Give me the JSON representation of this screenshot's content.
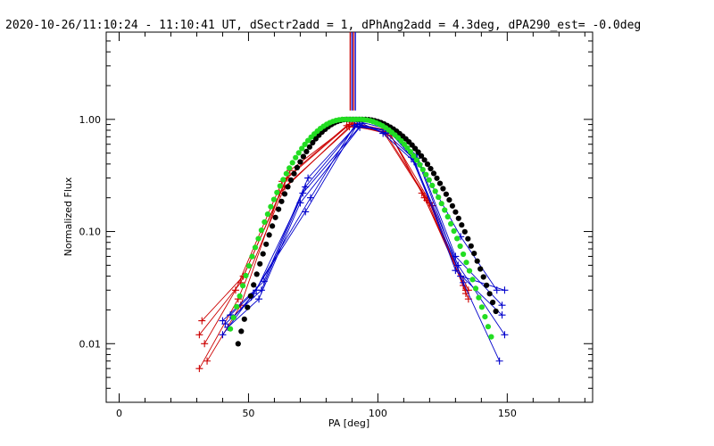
{
  "chart_data": {
    "type": "line",
    "title": "2020-10-26/11:10:24 - 11:10:41 UT, dSectr2add = 1, dPhAng2add = 4.3deg, dPA290_est= -0.0deg",
    "xlabel": "PA [deg]",
    "ylabel": "Normalized Flux",
    "xlim": [
      -5,
      183
    ],
    "ylim": [
      0.003,
      6.0
    ],
    "yscale": "log",
    "xticks": [
      0,
      50,
      100,
      150
    ],
    "xtick_labels": [
      "0",
      "50",
      "100",
      "150"
    ],
    "yticks": [
      0.01,
      0.1,
      1.0
    ],
    "ytick_labels": [
      "0.01",
      "0.10",
      "1.00"
    ],
    "vlines": [
      {
        "x": 89.3,
        "color": "#cc0000"
      },
      {
        "x": 90.0,
        "color": "#0000cc"
      },
      {
        "x": 90.6,
        "color": "#cc0000"
      },
      {
        "x": 91.3,
        "color": "#0000cc"
      }
    ],
    "series": [
      {
        "name": "red-1",
        "color": "#cc0000",
        "marker": "plus",
        "x": [
          31,
          47,
          66,
          90,
          104,
          118,
          134
        ],
        "y": [
          0.012,
          0.035,
          0.35,
          0.93,
          0.8,
          0.2,
          0.03
        ]
      },
      {
        "name": "red-2",
        "color": "#cc0000",
        "marker": "plus",
        "x": [
          32,
          48,
          65,
          89,
          103,
          120,
          135
        ],
        "y": [
          0.016,
          0.04,
          0.3,
          0.9,
          0.75,
          0.18,
          0.025
        ]
      },
      {
        "name": "red-3",
        "color": "#cc0000",
        "marker": "plus",
        "x": [
          33,
          45,
          63,
          88,
          102,
          119,
          133
        ],
        "y": [
          0.01,
          0.03,
          0.28,
          0.88,
          0.78,
          0.19,
          0.033
        ]
      },
      {
        "name": "red-4",
        "color": "#cc0000",
        "marker": "plus",
        "x": [
          31,
          46,
          64,
          91,
          105,
          121,
          134
        ],
        "y": [
          0.006,
          0.025,
          0.25,
          0.92,
          0.72,
          0.17,
          0.028
        ]
      },
      {
        "name": "red-5",
        "color": "#cc0000",
        "marker": "plus",
        "x": [
          34,
          47,
          62,
          89,
          104,
          117,
          135
        ],
        "y": [
          0.007,
          0.022,
          0.22,
          0.86,
          0.8,
          0.22,
          0.03
        ]
      },
      {
        "name": "blue-1",
        "color": "#0000cc",
        "marker": "plus",
        "x": [
          40,
          56,
          73,
          93,
          104,
          115,
          132,
          146
        ],
        "y": [
          0.016,
          0.036,
          0.3,
          0.95,
          0.82,
          0.45,
          0.09,
          0.03
        ]
      },
      {
        "name": "blue-2",
        "color": "#0000cc",
        "marker": "plus",
        "x": [
          41,
          55,
          72,
          92,
          103,
          115,
          130,
          148
        ],
        "y": [
          0.015,
          0.03,
          0.25,
          0.9,
          0.8,
          0.48,
          0.06,
          0.022
        ]
      },
      {
        "name": "blue-3",
        "color": "#0000cc",
        "marker": "plus",
        "x": [
          43,
          53,
          71,
          94,
          102,
          114,
          131,
          149
        ],
        "y": [
          0.018,
          0.03,
          0.22,
          0.92,
          0.75,
          0.42,
          0.05,
          0.012
        ]
      },
      {
        "name": "blue-4",
        "color": "#0000cc",
        "marker": "plus",
        "x": [
          40,
          52,
          74,
          91,
          105,
          113,
          133,
          147
        ],
        "y": [
          0.012,
          0.028,
          0.2,
          0.88,
          0.78,
          0.46,
          0.035,
          0.007
        ]
      },
      {
        "name": "blue-5",
        "color": "#0000cc",
        "marker": "plus",
        "x": [
          42,
          54,
          70,
          93,
          104,
          114,
          130,
          148
        ],
        "y": [
          0.014,
          0.025,
          0.18,
          0.85,
          0.8,
          0.44,
          0.045,
          0.018
        ]
      },
      {
        "name": "blue-6",
        "color": "#0000cc",
        "marker": "plus",
        "x": [
          44,
          51,
          72,
          92,
          103,
          116,
          132,
          149
        ],
        "y": [
          0.017,
          0.026,
          0.15,
          0.9,
          0.76,
          0.4,
          0.04,
          0.03
        ]
      },
      {
        "name": "model-black",
        "color": "#000000",
        "marker": "dot",
        "model": {
          "amp": 1.0,
          "center": 91.5,
          "sigma_left": 14.0,
          "sigma_right": 18.2,
          "flat_halfwidth": 3
        },
        "x_range": [
          46,
          146
        ],
        "x_step": 1.2
      },
      {
        "name": "model-green",
        "color": "#22dd22",
        "marker": "dot",
        "model": {
          "amp": 1.0,
          "center": 90.0,
          "sigma_left": 15.0,
          "sigma_right": 17.0,
          "flat_halfwidth": 3
        },
        "x_range": [
          43,
          145
        ],
        "x_step": 1.2
      }
    ]
  }
}
